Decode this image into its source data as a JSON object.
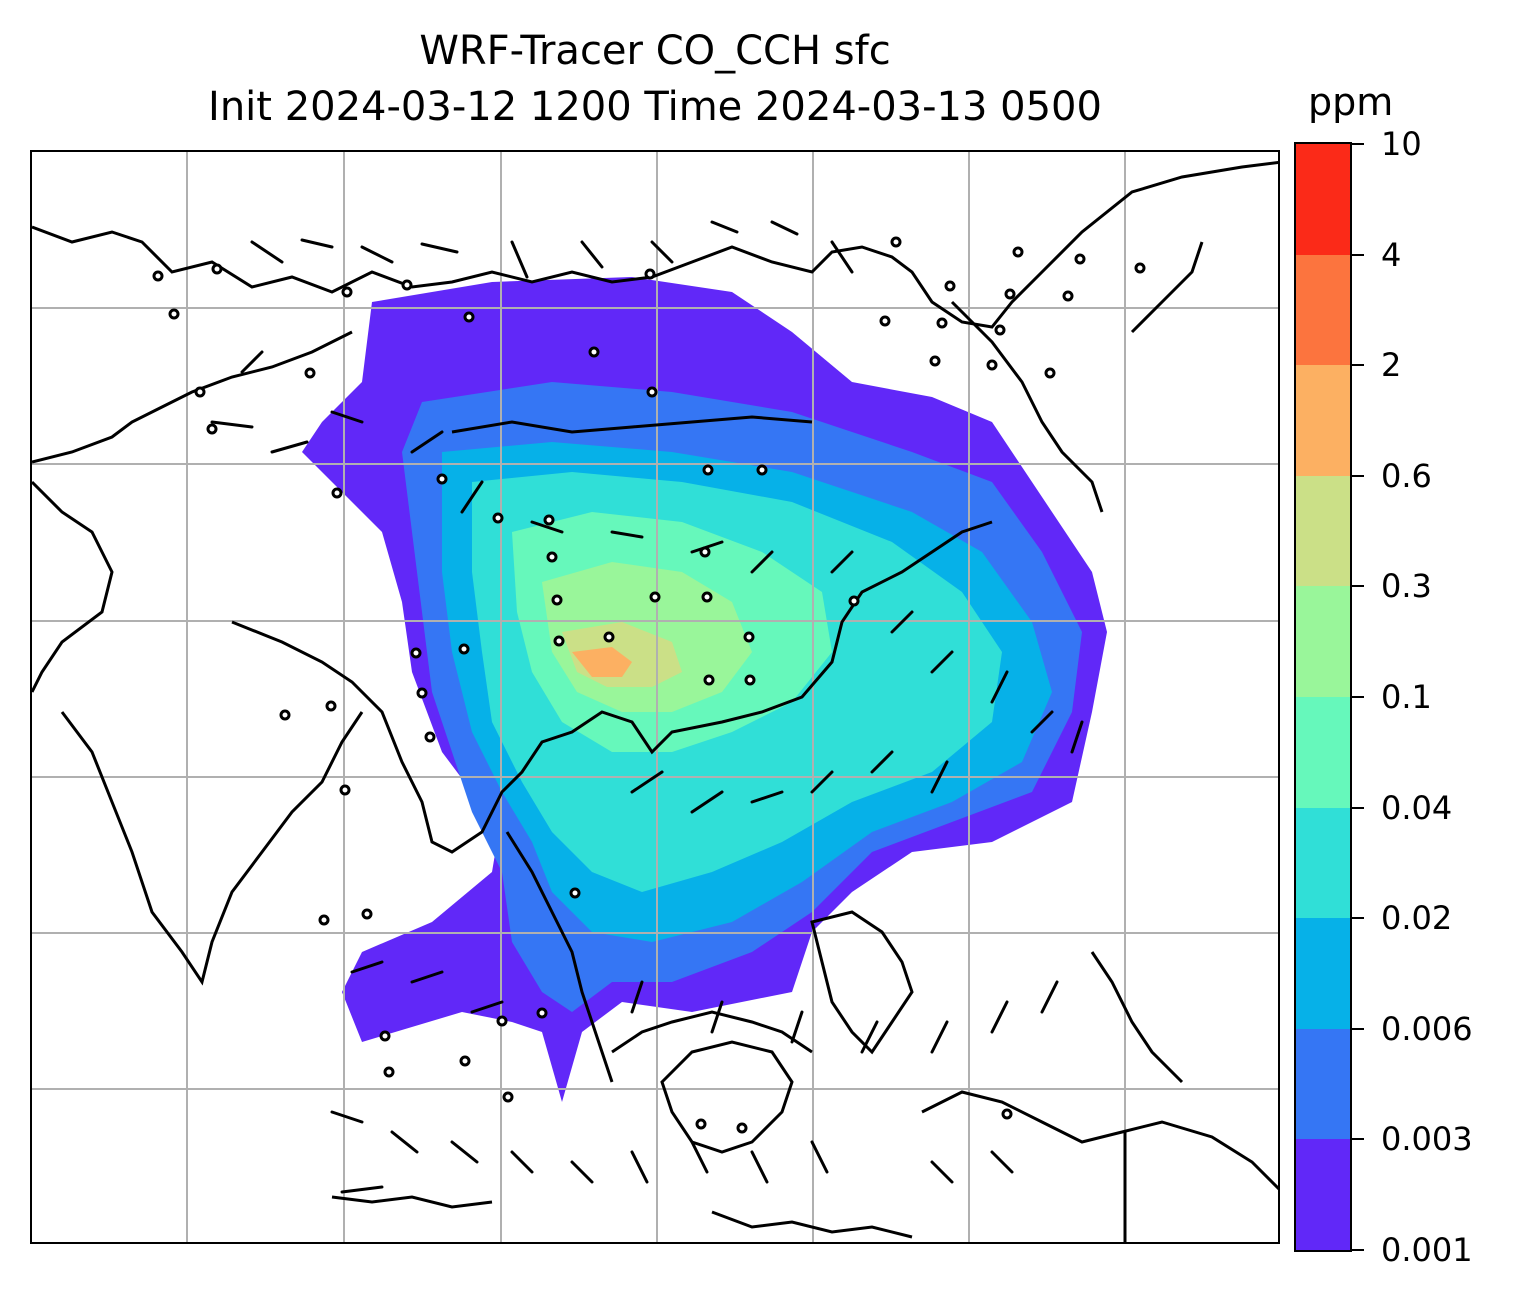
{
  "title_line1": "WRF-Tracer CO_CCH sfc",
  "title_line2": "Init 2024-03-12 1200 Time 2024-03-13 0500",
  "colorbar": {
    "unit": "ppm",
    "levels": [
      "0.001",
      "0.003",
      "0.006",
      "0.02",
      "0.04",
      "0.1",
      "0.3",
      "0.6",
      "2",
      "4",
      "10"
    ],
    "colors": [
      "#6128f8",
      "#3576f4",
      "#06b1e8",
      "#30dfd7",
      "#66f8bb",
      "#99f69a",
      "#cbe087",
      "#fcb062",
      "#fc743e",
      "#fb2a18"
    ]
  },
  "map": {
    "gridlines": true,
    "grid_color": "#b0b0b0",
    "coastline_color": "#000000",
    "wind_barbs": true,
    "station_markers": true
  }
}
